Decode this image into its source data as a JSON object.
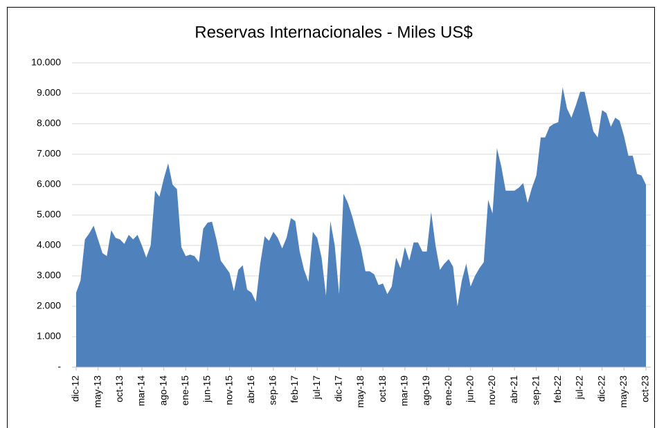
{
  "chart_data": {
    "type": "area",
    "title": "Reservas Internacionales - Miles US$",
    "categories": [
      "dic-12",
      null,
      null,
      null,
      null,
      "may-13",
      null,
      null,
      null,
      null,
      "oct-13",
      null,
      null,
      null,
      null,
      "mar-14",
      null,
      null,
      null,
      null,
      "ago-14",
      null,
      null,
      null,
      null,
      "ene-15",
      null,
      null,
      null,
      null,
      "jun-15",
      null,
      null,
      null,
      null,
      "nov-15",
      null,
      null,
      null,
      null,
      "abr-16",
      null,
      null,
      null,
      null,
      "sep-16",
      null,
      null,
      null,
      null,
      "feb-17",
      null,
      null,
      null,
      null,
      "jul-17",
      null,
      null,
      null,
      null,
      "dic-17",
      null,
      null,
      null,
      null,
      "may-18",
      null,
      null,
      null,
      null,
      "oct-18",
      null,
      null,
      null,
      null,
      "mar-19",
      null,
      null,
      null,
      null,
      "ago-19",
      null,
      null,
      null,
      null,
      "ene-20",
      null,
      null,
      null,
      null,
      "jun-20",
      null,
      null,
      null,
      null,
      "nov-20",
      null,
      null,
      null,
      null,
      "abr-21",
      null,
      null,
      null,
      null,
      "sep-21",
      null,
      null,
      null,
      null,
      "feb-22",
      null,
      null,
      null,
      null,
      "jul-22",
      null,
      null,
      null,
      null,
      "dic-22",
      null,
      null,
      null,
      null,
      "may-23",
      null,
      null,
      null,
      null,
      "oct-23"
    ],
    "values": [
      2450,
      2850,
      4200,
      4400,
      4650,
      4200,
      3750,
      3650,
      4500,
      4250,
      4200,
      4050,
      4350,
      4200,
      4350,
      4000,
      3600,
      4000,
      5800,
      5600,
      6200,
      6700,
      6000,
      5850,
      3950,
      3650,
      3700,
      3650,
      3450,
      4550,
      4750,
      4780,
      4200,
      3500,
      3300,
      3100,
      2500,
      3200,
      3350,
      2550,
      2450,
      2150,
      3400,
      4300,
      4150,
      4450,
      4250,
      3900,
      4250,
      4900,
      4800,
      3800,
      3200,
      2800,
      4450,
      4250,
      3600,
      2350,
      4800,
      4000,
      2400,
      5700,
      5400,
      4950,
      4400,
      3900,
      3150,
      3150,
      3050,
      2700,
      2750,
      2400,
      2650,
      3600,
      3250,
      3950,
      3500,
      4100,
      4100,
      3800,
      3800,
      5100,
      4000,
      3200,
      3400,
      3550,
      3300,
      2000,
      2850,
      3400,
      2650,
      3000,
      3250,
      3450,
      5500,
      5050,
      7200,
      6600,
      5800,
      5800,
      5800,
      5900,
      6050,
      5400,
      5900,
      6300,
      7550,
      7550,
      7900,
      8000,
      8050,
      9200,
      8500,
      8200,
      8600,
      9050,
      9050,
      8400,
      7750,
      7550,
      8450,
      8350,
      7900,
      8200,
      8100,
      7600,
      6950,
      6950,
      6350,
      6300,
      6000
    ],
    "color": "#4f81bd",
    "ylim": [
      0,
      10000
    ],
    "yticks": [
      {
        "value": 0,
        "label": "-"
      },
      {
        "value": 1000,
        "label": "1.000"
      },
      {
        "value": 2000,
        "label": "2.000"
      },
      {
        "value": 3000,
        "label": "3.000"
      },
      {
        "value": 4000,
        "label": "4.000"
      },
      {
        "value": 5000,
        "label": "5.000"
      },
      {
        "value": 6000,
        "label": "6.000"
      },
      {
        "value": 7000,
        "label": "7.000"
      },
      {
        "value": 8000,
        "label": "8.000"
      },
      {
        "value": 9000,
        "label": "9.000"
      },
      {
        "value": 10000,
        "label": "10.000"
      }
    ],
    "grid": true
  }
}
